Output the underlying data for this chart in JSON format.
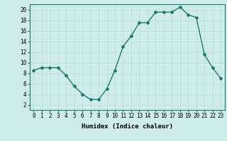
{
  "x": [
    0,
    1,
    2,
    3,
    4,
    5,
    6,
    7,
    8,
    9,
    10,
    11,
    12,
    13,
    14,
    15,
    16,
    17,
    18,
    19,
    20,
    21,
    22,
    23
  ],
  "y": [
    8.5,
    9.0,
    9.0,
    9.0,
    7.5,
    5.5,
    4.0,
    3.0,
    3.0,
    5.0,
    8.5,
    13.0,
    15.0,
    17.5,
    17.5,
    19.5,
    19.5,
    19.5,
    20.5,
    19.0,
    18.5,
    11.5,
    9.0,
    7.0
  ],
  "xlim": [
    -0.5,
    23.5
  ],
  "ylim": [
    1,
    21
  ],
  "yticks": [
    2,
    4,
    6,
    8,
    10,
    12,
    14,
    16,
    18,
    20
  ],
  "xticks": [
    0,
    1,
    2,
    3,
    4,
    5,
    6,
    7,
    8,
    9,
    10,
    11,
    12,
    13,
    14,
    15,
    16,
    17,
    18,
    19,
    20,
    21,
    22,
    23
  ],
  "xlabel": "Humidex (Indice chaleur)",
  "line_color": "#1a7a6e",
  "marker": "D",
  "marker_size": 2.0,
  "line_width": 1.0,
  "bg_color": "#ceecea",
  "grid_color": "#b8d8d6",
  "label_fontsize": 6.5,
  "tick_fontsize": 5.5
}
